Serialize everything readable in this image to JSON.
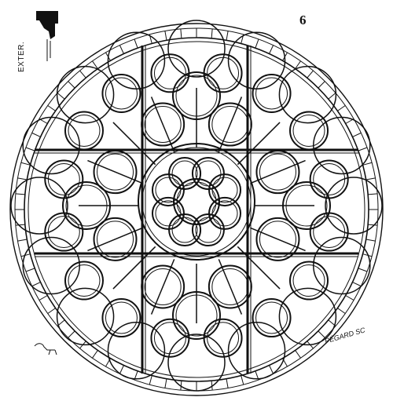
{
  "plate": {
    "number": "6",
    "side_label": "EXTER.",
    "signature": "PÉGARD SC"
  },
  "drawing": {
    "subject": "rose-window-tracery",
    "ink_color": "#111111",
    "paper_color": "#ffffff"
  }
}
